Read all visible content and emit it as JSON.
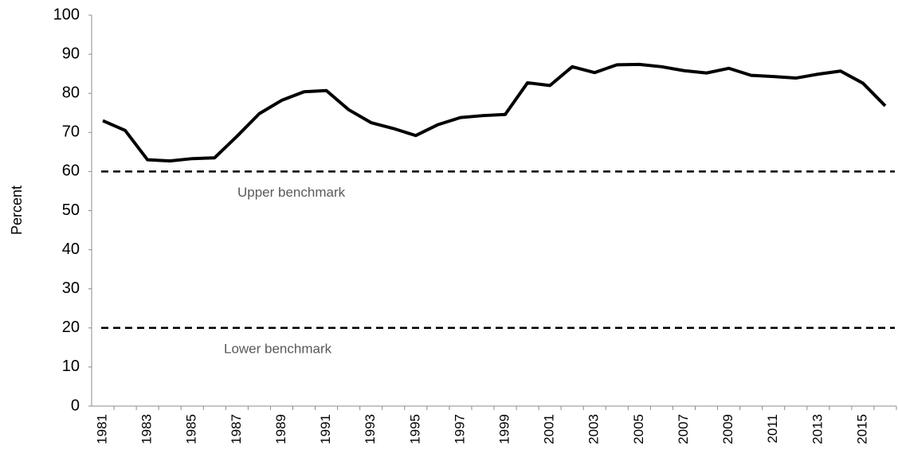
{
  "chart_data": {
    "type": "line",
    "y_label": "Percent",
    "categories": [
      "1981",
      null,
      "1983",
      null,
      "1985",
      null,
      "1987",
      null,
      "1989",
      null,
      "1991",
      null,
      "1993",
      null,
      "1995",
      null,
      "1997",
      null,
      "1999",
      null,
      "2001",
      null,
      "2003",
      null,
      "2005",
      null,
      "2007",
      null,
      "2009",
      null,
      "2011",
      null,
      "2013",
      null,
      "2015",
      null
    ],
    "series": [
      {
        "color": "#000000",
        "values": [
          73,
          70.5,
          63,
          62.7,
          63.3,
          63.5,
          69,
          74.8,
          78.2,
          80.4,
          80.7,
          75.8,
          72.5,
          71,
          69.2,
          72,
          73.8,
          74.3,
          74.6,
          82.7,
          82,
          86.8,
          85.3,
          87.3,
          87.4,
          86.8,
          85.8,
          85.2,
          86.4,
          84.6,
          84.3,
          83.9,
          84.9,
          85.7,
          82.6,
          76.8
        ]
      }
    ],
    "reference_lines": [
      {
        "value": 60,
        "label": "Upper benchmark"
      },
      {
        "value": 20,
        "label": "Lower benchmark"
      }
    ],
    "ylim": [
      0,
      100
    ],
    "yticks": [
      0,
      10,
      20,
      30,
      40,
      50,
      60,
      70,
      80,
      90,
      100
    ],
    "grid": false
  }
}
